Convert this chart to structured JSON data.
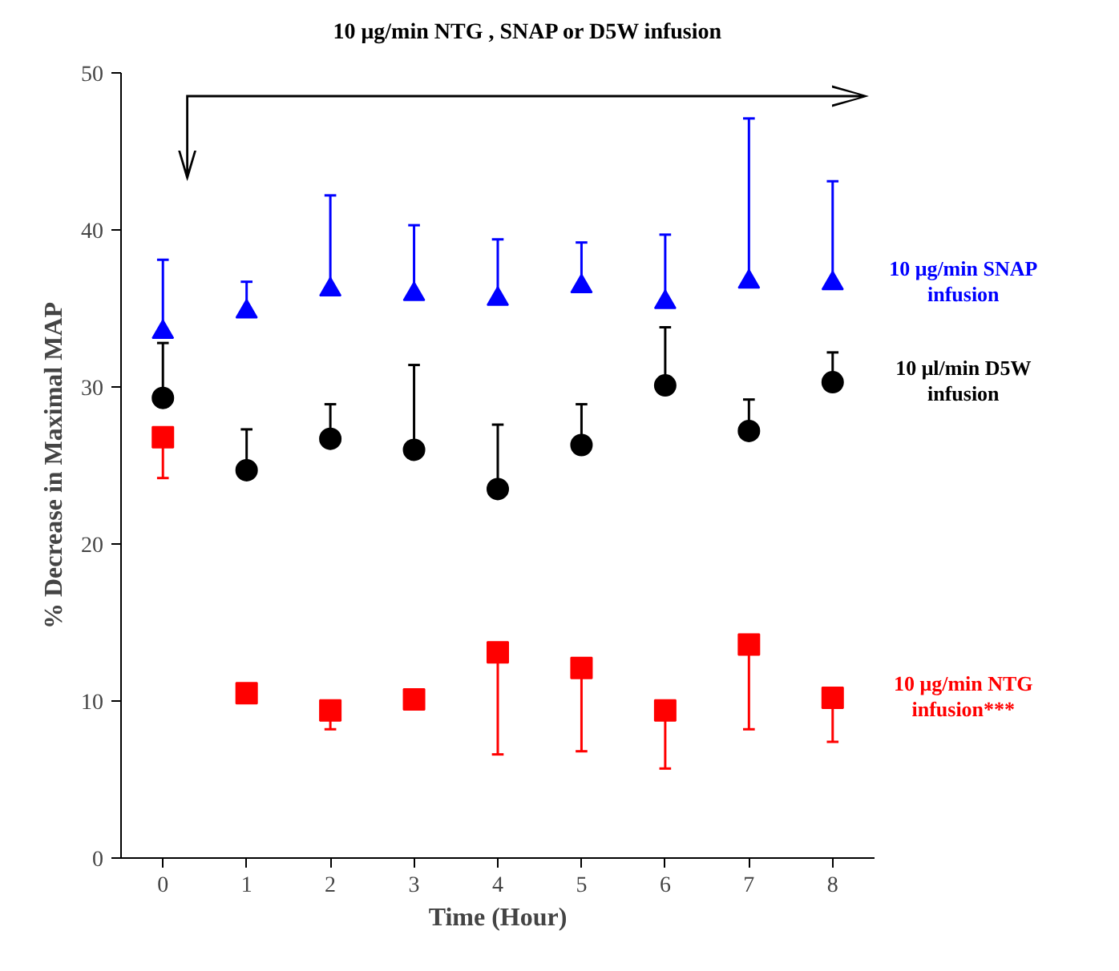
{
  "chart_data": {
    "type": "scatter",
    "xlabel": "Time (Hour)",
    "ylabel": "% Decrease in Maximal MAP",
    "x": [
      0,
      1,
      2,
      3,
      4,
      5,
      6,
      7,
      8
    ],
    "xlim": [
      -0.5,
      8.5
    ],
    "xticks": [
      0,
      1,
      2,
      3,
      4,
      5,
      6,
      7,
      8
    ],
    "ylim": [
      0,
      50
    ],
    "yticks": [
      0,
      10,
      20,
      30,
      40,
      50
    ],
    "grid": false,
    "annotations": [
      "10 μg/min NTG , SNAP or D5W infusion"
    ],
    "series": [
      {
        "name": "10 μg/min SNAP infusion",
        "color": "#0000ff",
        "marker": "triangle",
        "values": [
          33.5,
          34.8,
          36.2,
          35.9,
          35.6,
          36.4,
          35.4,
          36.7,
          36.6
        ],
        "errors": [
          [
            33.5,
            38.1
          ],
          [
            34.8,
            36.7
          ],
          [
            36.2,
            42.2
          ],
          [
            35.9,
            40.3
          ],
          [
            35.6,
            39.4
          ],
          [
            36.4,
            39.2
          ],
          [
            35.4,
            39.7
          ],
          [
            36.7,
            47.1
          ],
          [
            36.6,
            43.1
          ]
        ]
      },
      {
        "name": "10 μl/min D5W infusion",
        "color": "#000000",
        "marker": "circle",
        "values": [
          29.3,
          24.7,
          26.7,
          26.0,
          23.5,
          26.3,
          30.1,
          27.2,
          30.3
        ],
        "errors": [
          [
            29.3,
            32.8
          ],
          [
            24.7,
            27.3
          ],
          [
            26.7,
            28.9
          ],
          [
            26.0,
            31.4
          ],
          [
            23.5,
            27.6
          ],
          [
            26.3,
            28.9
          ],
          [
            30.1,
            33.8
          ],
          [
            27.2,
            29.2
          ],
          [
            30.3,
            32.2
          ]
        ]
      },
      {
        "name": "10 μg/min NTG infusion***",
        "color": "#ff0000",
        "marker": "square",
        "values": [
          26.8,
          10.5,
          9.4,
          10.1,
          13.1,
          12.1,
          9.4,
          13.6,
          10.2
        ],
        "errors": [
          [
            24.2,
            26.8
          ],
          null,
          [
            8.2,
            9.4
          ],
          null,
          [
            6.6,
            13.1
          ],
          [
            6.8,
            12.1
          ],
          [
            5.7,
            9.4
          ],
          [
            8.2,
            13.6
          ],
          [
            7.4,
            10.2
          ]
        ]
      }
    ]
  }
}
